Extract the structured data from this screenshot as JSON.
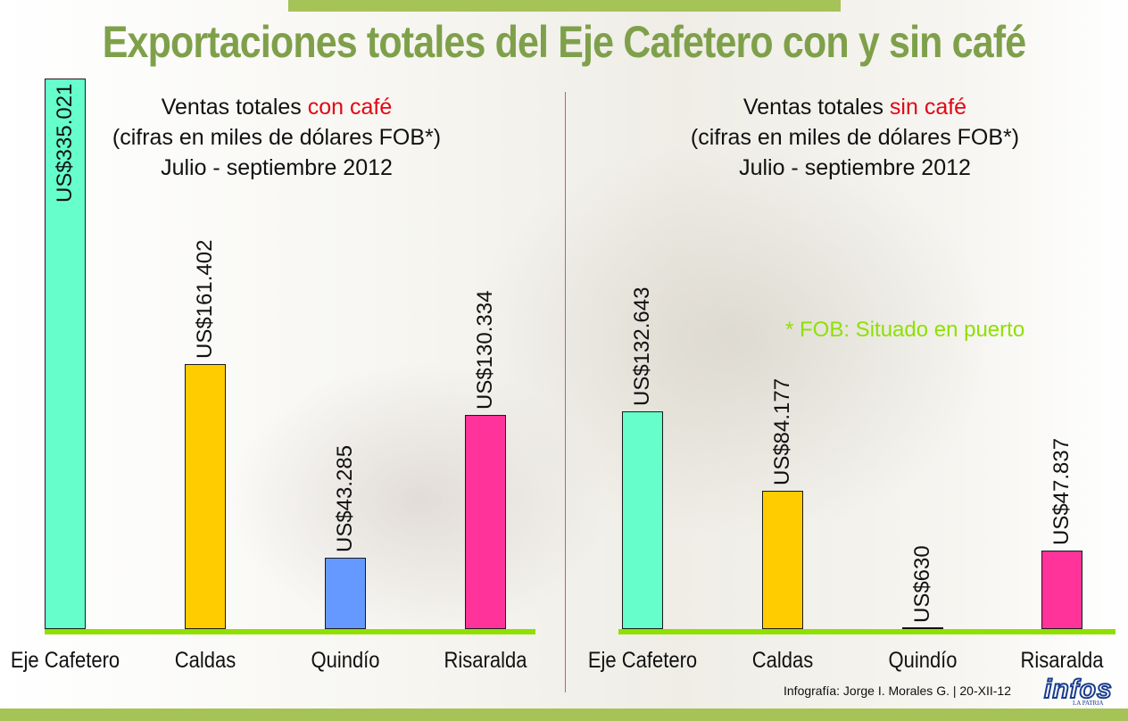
{
  "title": "Exportaciones totales del Eje Cafetero con y sin café",
  "panels": [
    {
      "title_prefix": "Ventas totales ",
      "title_highlight": "con café",
      "subtitle": "(cifras en miles de dólares FOB*)",
      "period": "Julio - septiembre 2012"
    },
    {
      "title_prefix": "Ventas totales ",
      "title_highlight": "sin café",
      "subtitle": "(cifras en miles de dólares FOB*)",
      "period": "Julio - septiembre 2012"
    }
  ],
  "note": "* FOB: Situado en puerto",
  "credit": "Infografía: Jorge I. Morales G. | 20-XII-12",
  "logo": {
    "text": "infos",
    "sub": "LA PATRIA"
  },
  "colors": {
    "title": "#7fa04a",
    "highlight": "#e30613",
    "baseline": "#8fe000",
    "bars": [
      "#66ffcc",
      "#ffcc00",
      "#6699ff",
      "#ff3399"
    ]
  },
  "chart_data": [
    {
      "type": "bar",
      "title": "Ventas totales con café",
      "categories": [
        "Eje Cafetero",
        "Caldas",
        "Quindío",
        "Risaralda"
      ],
      "values": [
        335021,
        161402,
        43285,
        130334
      ],
      "labels": [
        "US$335.021",
        "US$161.402",
        "US$43.285",
        "US$130.334"
      ],
      "unit": "miles de dólares FOB",
      "ylim": [
        0,
        335021
      ],
      "grid": false
    },
    {
      "type": "bar",
      "title": "Ventas totales sin café",
      "categories": [
        "Eje Cafetero",
        "Caldas",
        "Quindío",
        "Risaralda"
      ],
      "values": [
        132643,
        84177,
        630,
        47837
      ],
      "labels": [
        "US$132.643",
        "US$84.177",
        "US$630",
        "US$47.837"
      ],
      "unit": "miles de dólares FOB",
      "ylim": [
        0,
        335021
      ],
      "grid": false
    }
  ]
}
